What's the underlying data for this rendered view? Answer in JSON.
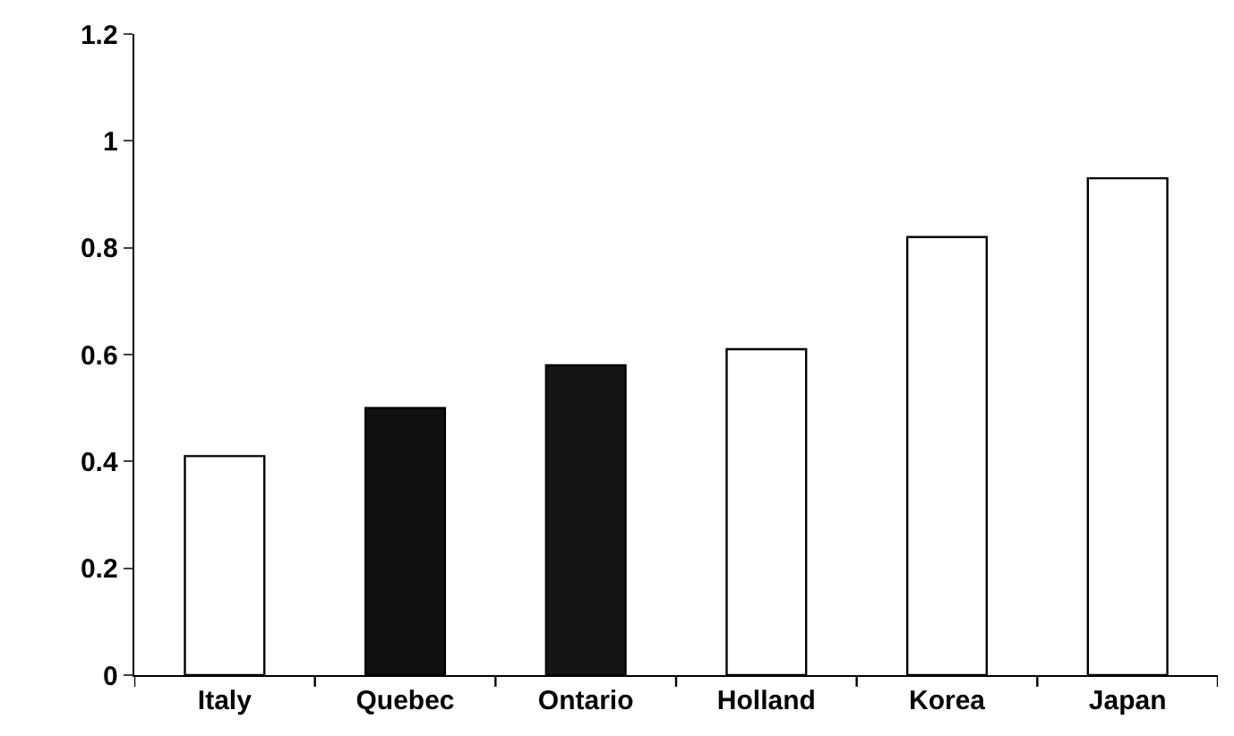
{
  "chart_data": {
    "type": "bar",
    "categories": [
      "Italy",
      "Quebec",
      "Ontario",
      "Holland",
      "Korea",
      "Japan"
    ],
    "values": [
      0.41,
      0.5,
      0.58,
      0.61,
      0.82,
      0.93
    ],
    "colors": [
      "#ffffff",
      "#111111",
      "#151515",
      "#ffffff",
      "#ffffff",
      "#ffffff"
    ],
    "ylim": [
      0,
      1.2
    ],
    "yticks": [
      0,
      0.2,
      0.4,
      0.6,
      0.8,
      1,
      1.2
    ],
    "grid": false,
    "legend": false
  }
}
